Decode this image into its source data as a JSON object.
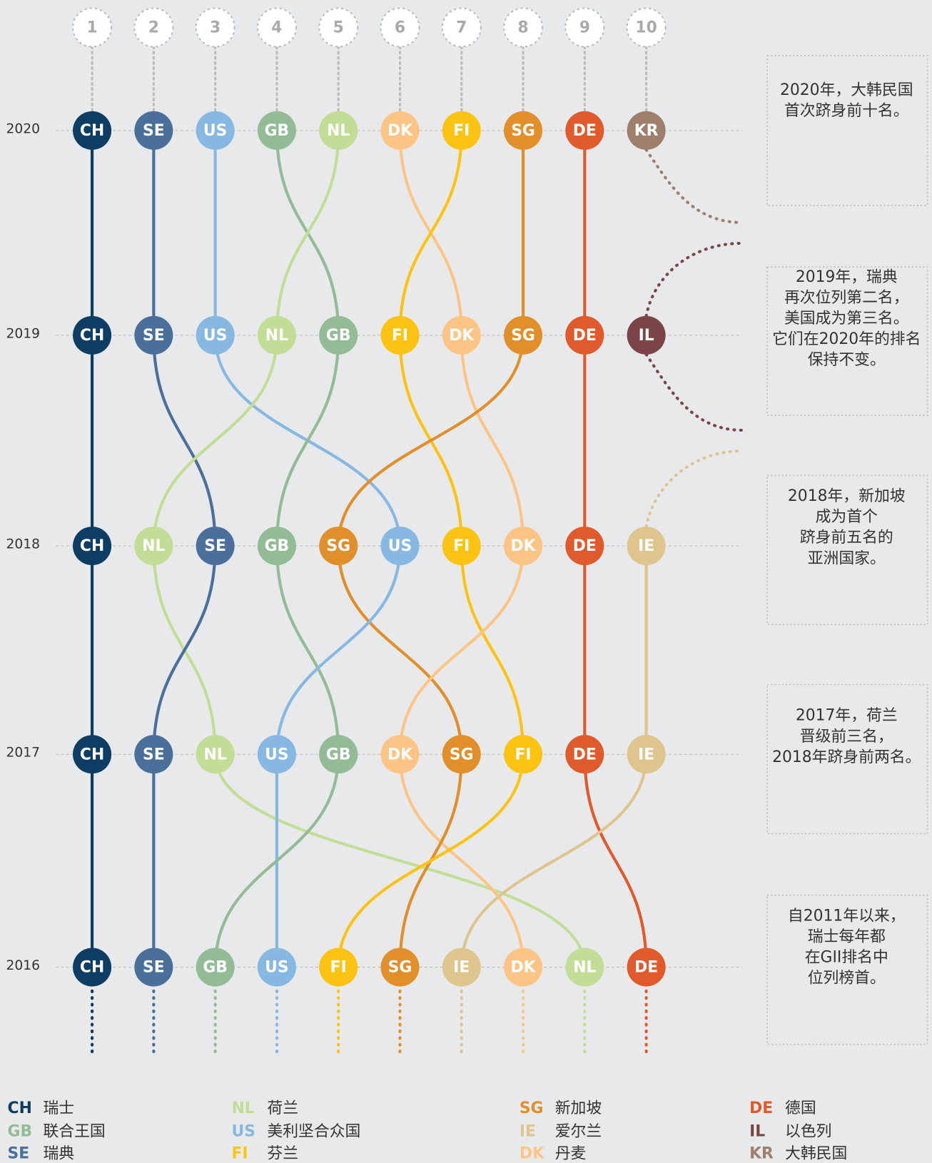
{
  "ranks": [
    1,
    2,
    3,
    4,
    5,
    6,
    7,
    8,
    9,
    10
  ],
  "years": [
    {
      "year": 2020,
      "row": [
        "CH",
        "SE",
        "US",
        "GB",
        "NL",
        "DK",
        "FI",
        "SG",
        "DE",
        "KR"
      ]
    },
    {
      "year": 2019,
      "row": [
        "CH",
        "SE",
        "US",
        "NL",
        "GB",
        "FI",
        "DK",
        "SG",
        "DE",
        "IL"
      ]
    },
    {
      "year": 2018,
      "row": [
        "CH",
        "NL",
        "SE",
        "GB",
        "SG",
        "US",
        "FI",
        "DK",
        "DE",
        "IE"
      ]
    },
    {
      "year": 2017,
      "row": [
        "CH",
        "SE",
        "NL",
        "US",
        "GB",
        "DK",
        "SG",
        "FI",
        "DE",
        "IE"
      ]
    },
    {
      "year": 2016,
      "row": [
        "CH",
        "SE",
        "GB",
        "US",
        "FI",
        "SG",
        "IE",
        "DK",
        "NL",
        "DE"
      ]
    }
  ],
  "colors": {
    "CH": "#0d3d63",
    "SE": "#4a6f9a",
    "US": "#86b8e2",
    "GB": "#93bb96",
    "NL": "#c2dd96",
    "DK": "#fdc585",
    "FI": "#fdc313",
    "SG": "#e08f2a",
    "DE": "#e05a2b",
    "KR": "#9e7f6c",
    "IL": "#7b4548",
    "IE": "#dec58d"
  },
  "annotations": [
    [
      "2020年，大韩民国",
      "首次跻身前十名。"
    ],
    [
      "2019年，瑞典",
      "再次位列第二名，",
      "美国成为第三名。",
      "它们在2020年的排名",
      "保持不变。"
    ],
    [
      "2018年，新加坡",
      "成为首个",
      "跻身前五名的",
      "亚洲国家。"
    ],
    [
      "2017年，荷兰",
      "晋级前三名，",
      "2018年跻身前两名。"
    ],
    [
      "自2011年以来，",
      "瑞士每年都",
      "在GII排名中",
      "位列榜首。"
    ]
  ],
  "legend": [
    {
      "code": "CH",
      "name": "瑞士"
    },
    {
      "code": "GB",
      "name": "联合王国"
    },
    {
      "code": "SE",
      "name": "瑞典"
    },
    {
      "code": "NL",
      "name": "荷兰"
    },
    {
      "code": "US",
      "name": "美利坚合众国"
    },
    {
      "code": "FI",
      "name": "芬兰"
    },
    {
      "code": "SG",
      "name": "新加坡"
    },
    {
      "code": "IE",
      "name": "爱尔兰"
    },
    {
      "code": "DK",
      "name": "丹麦"
    },
    {
      "code": "DE",
      "name": "德国"
    },
    {
      "code": "IL",
      "name": "以色列"
    },
    {
      "code": "KR",
      "name": "大韩民国"
    }
  ]
}
